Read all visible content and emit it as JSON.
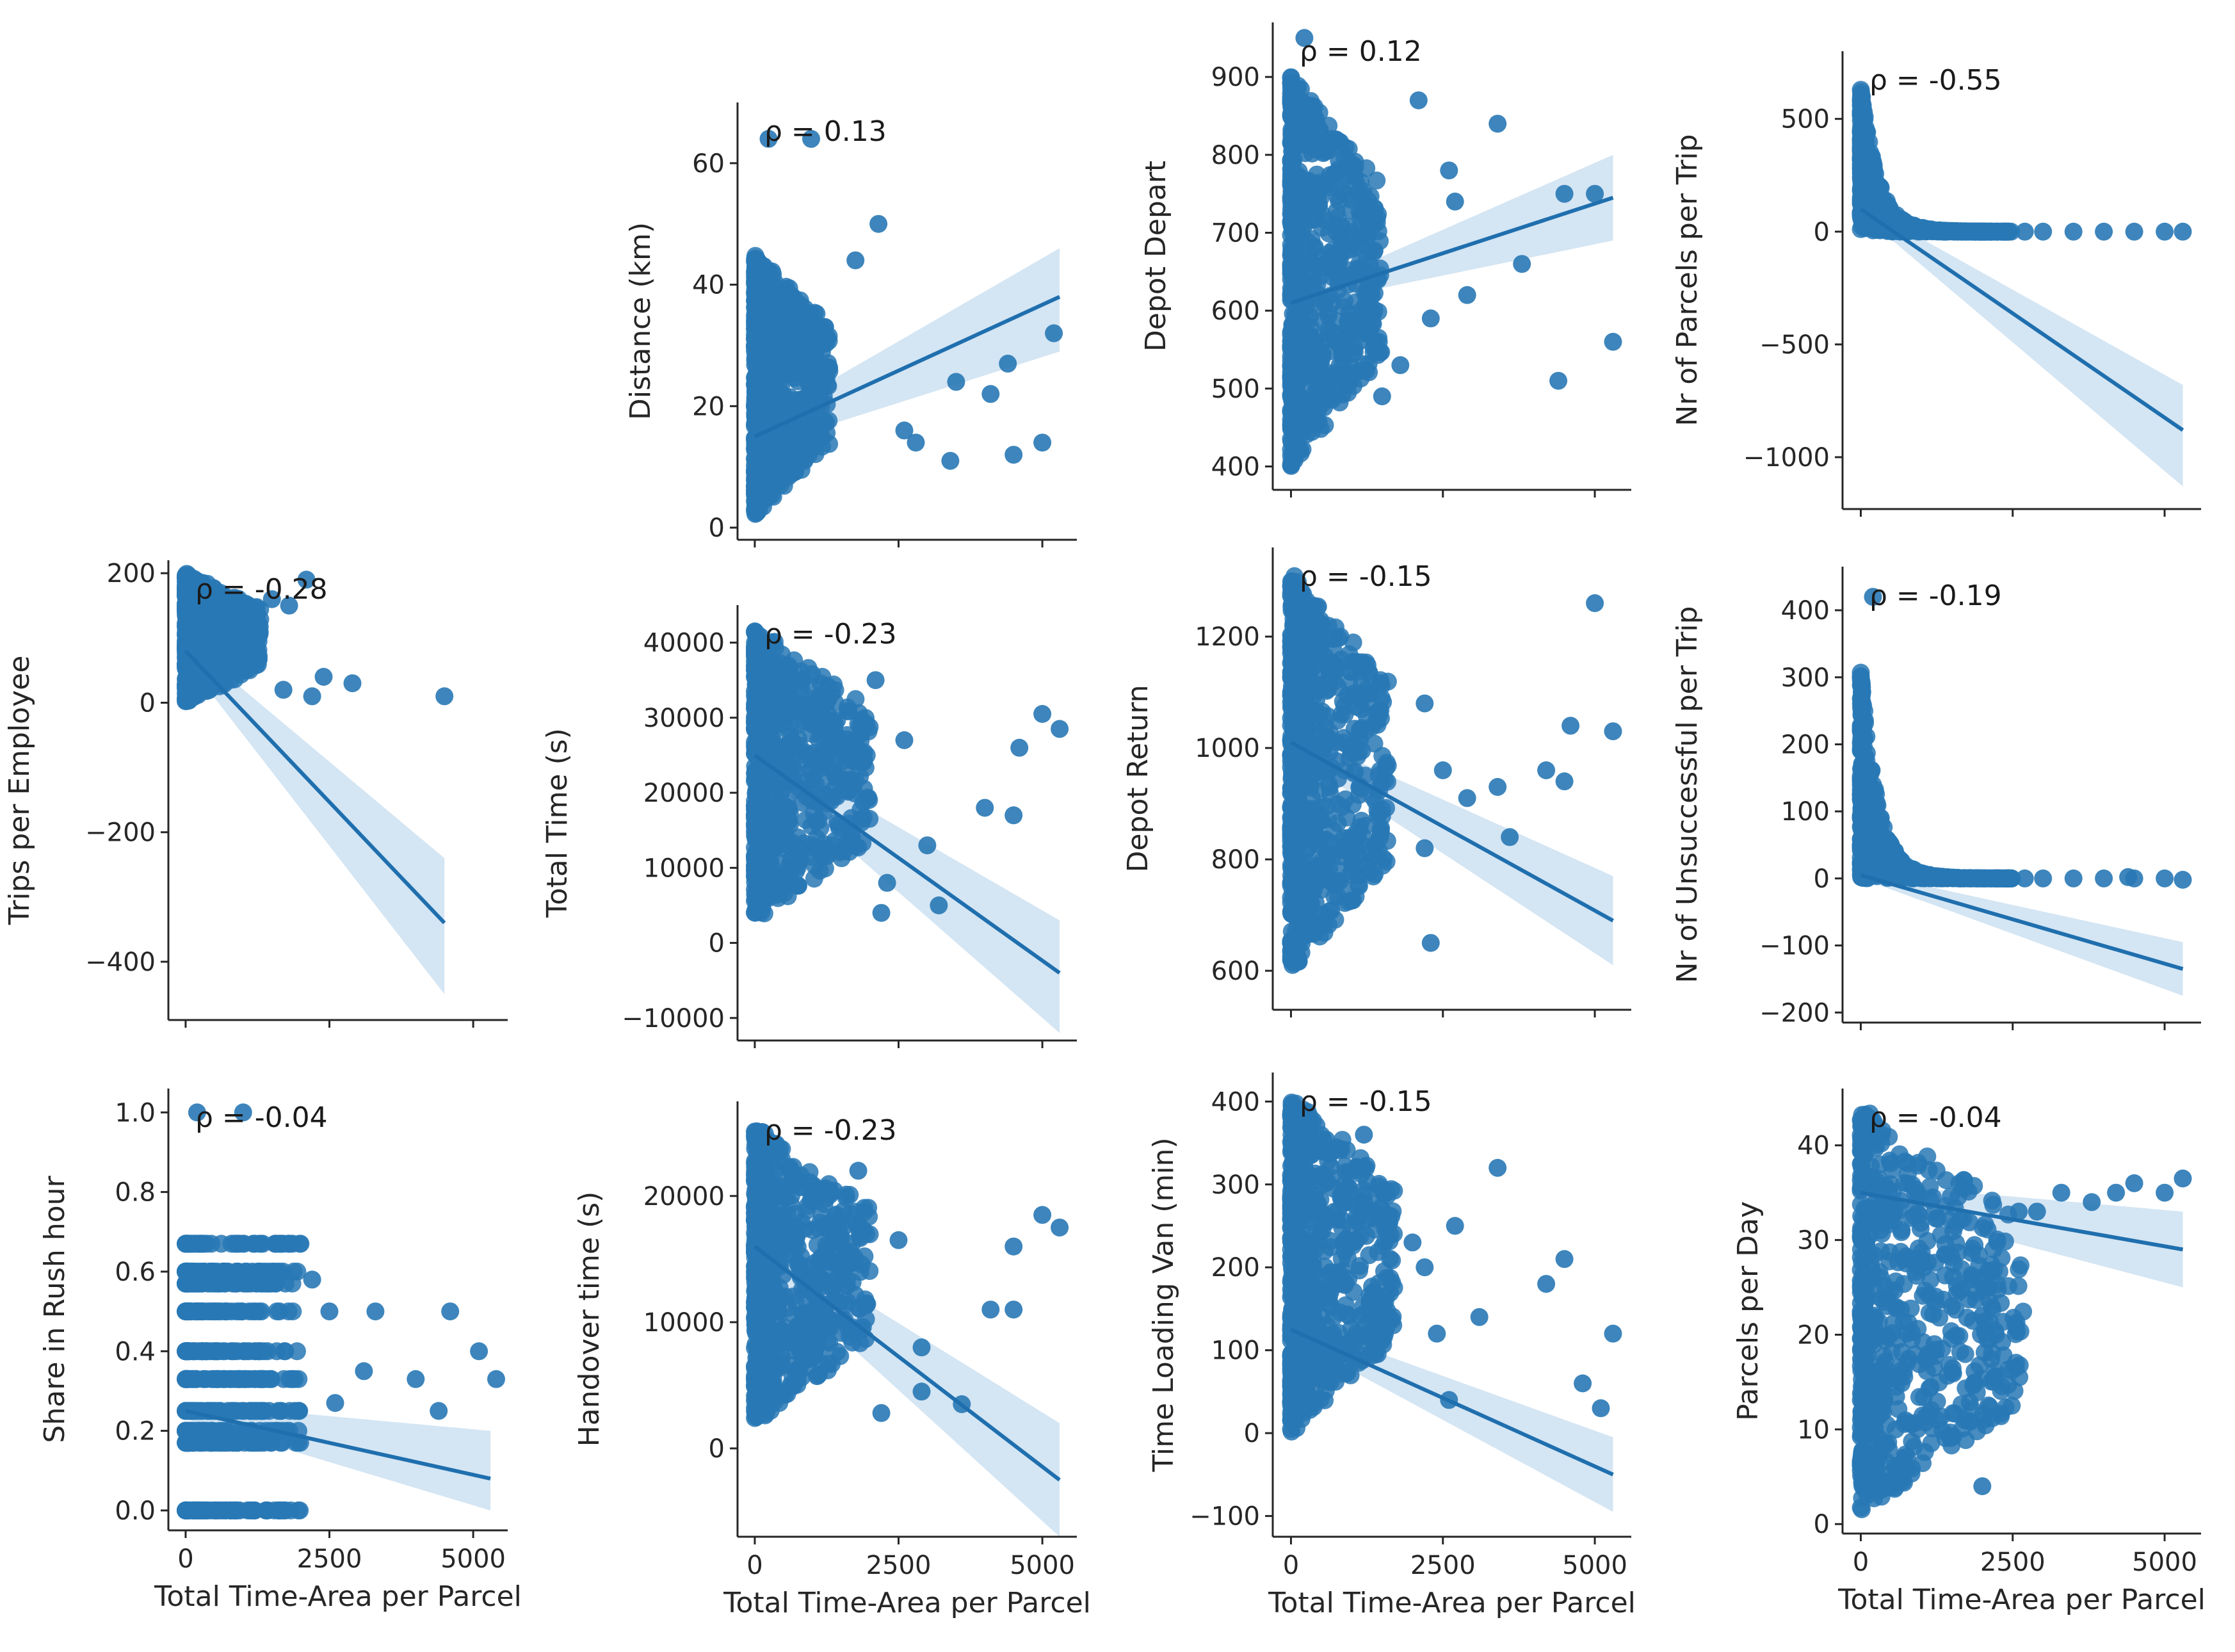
{
  "figure": {
    "description_type": "pairgrid-regression",
    "colors": {
      "points": "#2878b5",
      "line": "#1f6fae",
      "band": "#c6dcef",
      "axes": "#262626"
    }
  },
  "chart_data": [
    {
      "type": "scatter",
      "id": "distance",
      "ylabel": "Distance (km)",
      "xlabel": "",
      "rho": "ρ = 0.13",
      "xlim": [
        -300,
        5600
      ],
      "ylim": [
        -2,
        70
      ],
      "xticks": [],
      "yticks": [
        0,
        20,
        40,
        60
      ],
      "scatter_cluster": {
        "x": [
          0,
          1300
        ],
        "y": [
          2,
          45
        ]
      },
      "points": [
        [
          240,
          64
        ],
        [
          980,
          64
        ],
        [
          2150,
          50
        ],
        [
          1750,
          44
        ],
        [
          3500,
          24
        ],
        [
          4100,
          22
        ],
        [
          4400,
          27
        ],
        [
          3400,
          11
        ],
        [
          4500,
          12
        ],
        [
          5000,
          14
        ],
        [
          5200,
          32
        ],
        [
          2600,
          16
        ],
        [
          2800,
          14
        ]
      ],
      "regression": {
        "x": [
          0,
          5300
        ],
        "y": [
          15,
          38
        ]
      },
      "band": {
        "low": [
          13,
          29
        ],
        "high": [
          17,
          46
        ]
      }
    },
    {
      "type": "scatter",
      "id": "depot-depart",
      "ylabel": "Depot Depart",
      "xlabel": "",
      "rho": "ρ = 0.12",
      "xlim": [
        -300,
        5600
      ],
      "ylim": [
        370,
        970
      ],
      "xticks": [],
      "yticks": [
        400,
        500,
        600,
        700,
        800,
        900
      ],
      "scatter_cluster": {
        "x": [
          0,
          1500
        ],
        "y": [
          400,
          900
        ]
      },
      "points": [
        [
          220,
          950
        ],
        [
          2100,
          870
        ],
        [
          2600,
          780
        ],
        [
          2700,
          740
        ],
        [
          3400,
          840
        ],
        [
          4500,
          750
        ],
        [
          5000,
          750
        ],
        [
          4400,
          510
        ],
        [
          5300,
          560
        ],
        [
          3800,
          660
        ],
        [
          2300,
          590
        ],
        [
          1800,
          530
        ],
        [
          1500,
          490
        ],
        [
          2900,
          620
        ]
      ],
      "regression": {
        "x": [
          0,
          5300
        ],
        "y": [
          610,
          745
        ]
      },
      "band": {
        "low": [
          605,
          690
        ],
        "high": [
          618,
          800
        ]
      }
    },
    {
      "type": "scatter",
      "id": "parcels-per-trip",
      "ylabel": "Nr of Parcels per Trip",
      "xlabel": "",
      "rho": "ρ = -0.55",
      "xlim": [
        -300,
        5600
      ],
      "ylim": [
        -1230,
        800
      ],
      "xticks": [],
      "yticks": [
        -1000,
        -500,
        0,
        500
      ],
      "scatter_cluster": {
        "x": [
          0,
          2500
        ],
        "y": [
          0,
          650
        ],
        "shape": "hyperbola"
      },
      "points": [
        [
          3000,
          0
        ],
        [
          3500,
          0
        ],
        [
          4000,
          0
        ],
        [
          4500,
          0
        ],
        [
          5000,
          0
        ],
        [
          5300,
          0
        ],
        [
          2700,
          0
        ]
      ],
      "regression": {
        "x": [
          0,
          5300
        ],
        "y": [
          100,
          -880
        ]
      },
      "band": {
        "low": [
          80,
          -1130
        ],
        "high": [
          120,
          -680
        ]
      }
    },
    {
      "type": "scatter",
      "id": "trips-per-employee",
      "ylabel": "Trips per Employee",
      "xlabel": "",
      "rho": "ρ = -0.28",
      "xlim": [
        -300,
        5600
      ],
      "ylim": [
        -490,
        220
      ],
      "xticks": [],
      "yticks": [
        -400,
        -200,
        0,
        200
      ],
      "scatter_cluster": {
        "x": [
          0,
          1300
        ],
        "y": [
          0,
          200
        ]
      },
      "points": [
        [
          2100,
          190
        ],
        [
          1800,
          150
        ],
        [
          2400,
          40
        ],
        [
          2900,
          30
        ],
        [
          1700,
          20
        ],
        [
          2200,
          10
        ],
        [
          4500,
          10
        ],
        [
          1500,
          160
        ]
      ],
      "regression": {
        "x": [
          0,
          4500
        ],
        "y": [
          80,
          -340
        ]
      },
      "band": {
        "low": [
          65,
          -450
        ],
        "high": [
          95,
          -240
        ]
      }
    },
    {
      "type": "scatter",
      "id": "total-time",
      "ylabel": "Total Time (s)",
      "xlabel": "",
      "rho": "ρ = -0.23",
      "xlim": [
        -300,
        5600
      ],
      "ylim": [
        -13000,
        45000
      ],
      "xticks": [],
      "yticks": [
        -10000,
        0,
        10000,
        20000,
        30000,
        40000
      ],
      "scatter_cluster": {
        "x": [
          0,
          2000
        ],
        "y": [
          3000,
          42000
        ]
      },
      "points": [
        [
          2100,
          35000
        ],
        [
          2600,
          27000
        ],
        [
          4000,
          18000
        ],
        [
          4500,
          17000
        ],
        [
          4600,
          26000
        ],
        [
          5000,
          30500
        ],
        [
          5300,
          28500
        ],
        [
          3000,
          13000
        ],
        [
          3200,
          5000
        ],
        [
          2300,
          8000
        ],
        [
          2200,
          4000
        ]
      ],
      "regression": {
        "x": [
          0,
          5300
        ],
        "y": [
          25000,
          -4000
        ]
      },
      "band": {
        "low": [
          23500,
          -12000
        ],
        "high": [
          26500,
          3000
        ]
      }
    },
    {
      "type": "scatter",
      "id": "depot-return",
      "ylabel": "Depot Return",
      "xlabel": "",
      "rho": "ρ = -0.15",
      "xlim": [
        -300,
        5600
      ],
      "ylim": [
        530,
        1360
      ],
      "xticks": [],
      "yticks": [
        600,
        800,
        1000,
        1200
      ],
      "scatter_cluster": {
        "x": [
          0,
          1600
        ],
        "y": [
          600,
          1320
        ]
      },
      "points": [
        [
          2200,
          1080
        ],
        [
          2500,
          960
        ],
        [
          2900,
          910
        ],
        [
          3400,
          930
        ],
        [
          3600,
          840
        ],
        [
          4200,
          960
        ],
        [
          4500,
          940
        ],
        [
          4600,
          1040
        ],
        [
          5000,
          1260
        ],
        [
          5300,
          1030
        ],
        [
          2300,
          650
        ],
        [
          2200,
          820
        ]
      ],
      "regression": {
        "x": [
          0,
          5300
        ],
        "y": [
          1010,
          690
        ]
      },
      "band": {
        "low": [
          990,
          610
        ],
        "high": [
          1030,
          770
        ]
      }
    },
    {
      "type": "scatter",
      "id": "unsuccessful-per-trip",
      "ylabel": "Nr of Unsuccessful per Trip",
      "xlabel": "",
      "rho": "ρ = -0.19",
      "xlim": [
        -300,
        5600
      ],
      "ylim": [
        -215,
        465
      ],
      "xticks": [],
      "yticks": [
        -200,
        -100,
        0,
        100,
        200,
        300,
        400
      ],
      "scatter_cluster": {
        "x": [
          0,
          2500
        ],
        "y": [
          0,
          310
        ],
        "shape": "hyperbola"
      },
      "points": [
        [
          200,
          420
        ],
        [
          2700,
          0
        ],
        [
          3000,
          0
        ],
        [
          3500,
          0
        ],
        [
          4000,
          0
        ],
        [
          4500,
          0
        ],
        [
          5000,
          0
        ],
        [
          5300,
          -2
        ],
        [
          4400,
          2
        ]
      ],
      "regression": {
        "x": [
          0,
          5300
        ],
        "y": [
          5,
          -135
        ]
      },
      "band": {
        "low": [
          0,
          -175
        ],
        "high": [
          10,
          -95
        ]
      }
    },
    {
      "type": "scatter",
      "id": "share-rush-hour",
      "ylabel": "Share in Rush hour",
      "xlabel": "Total Time-Area per Parcel",
      "rho": "ρ = -0.04",
      "xlim": [
        -300,
        5600
      ],
      "ylim": [
        -0.05,
        1.06
      ],
      "xticks": [
        0,
        2500,
        5000
      ],
      "yticks": [
        0.0,
        0.2,
        0.4,
        0.6,
        0.8,
        1.0
      ],
      "scatter_cluster": {
        "x": [
          0,
          2000
        ],
        "y": [
          0.1,
          0.67
        ],
        "bands": [
          0.0,
          0.17,
          0.2,
          0.25,
          0.33,
          0.4,
          0.5,
          0.57,
          0.6,
          0.67
        ]
      },
      "points": [
        [
          200,
          1.0
        ],
        [
          1000,
          1.0
        ],
        [
          2200,
          0.58
        ],
        [
          2500,
          0.5
        ],
        [
          3300,
          0.5
        ],
        [
          4600,
          0.5
        ],
        [
          5100,
          0.4
        ],
        [
          5400,
          0.33
        ],
        [
          4000,
          0.33
        ],
        [
          4400,
          0.25
        ],
        [
          2600,
          0.27
        ],
        [
          3100,
          0.35
        ],
        [
          1900,
          0.25
        ]
      ],
      "regression": {
        "x": [
          0,
          5300
        ],
        "y": [
          0.25,
          0.08
        ]
      },
      "band": {
        "low": [
          0.23,
          0.0
        ],
        "high": [
          0.27,
          0.2
        ]
      }
    },
    {
      "type": "scatter",
      "id": "handover-time",
      "ylabel": "Handover time (s)",
      "xlabel": "Total Time-Area per Parcel",
      "rho": "ρ = -0.23",
      "xlim": [
        -300,
        5600
      ],
      "ylim": [
        -7000,
        27500
      ],
      "xticks": [
        0,
        2500,
        5000
      ],
      "yticks": [
        0,
        10000,
        20000
      ],
      "scatter_cluster": {
        "x": [
          0,
          2000
        ],
        "y": [
          2000,
          25500
        ]
      },
      "points": [
        [
          1800,
          22000
        ],
        [
          2500,
          16500
        ],
        [
          4100,
          11000
        ],
        [
          4500,
          11000
        ],
        [
          4500,
          16000
        ],
        [
          5000,
          18500
        ],
        [
          5300,
          17500
        ],
        [
          2900,
          8000
        ],
        [
          2900,
          4500
        ],
        [
          3600,
          3500
        ],
        [
          2200,
          2800
        ]
      ],
      "regression": {
        "x": [
          0,
          5300
        ],
        "y": [
          16000,
          -2500
        ]
      },
      "band": {
        "low": [
          15000,
          -7000
        ],
        "high": [
          17000,
          2000
        ]
      }
    },
    {
      "type": "scatter",
      "id": "time-loading-van",
      "ylabel": "Time Loading Van (min)",
      "xlabel": "Total Time-Area per Parcel",
      "rho": "ρ = -0.15",
      "xlim": [
        -300,
        5600
      ],
      "ylim": [
        -125,
        435
      ],
      "xticks": [
        0,
        2500,
        5000
      ],
      "yticks": [
        -100,
        0,
        100,
        200,
        300,
        400
      ],
      "scatter_cluster": {
        "x": [
          0,
          1700
        ],
        "y": [
          0,
          410
        ]
      },
      "points": [
        [
          1200,
          360
        ],
        [
          2000,
          230
        ],
        [
          2200,
          200
        ],
        [
          2700,
          250
        ],
        [
          3400,
          320
        ],
        [
          4500,
          210
        ],
        [
          4200,
          180
        ],
        [
          2400,
          120
        ],
        [
          3100,
          140
        ],
        [
          4800,
          60
        ],
        [
          5100,
          30
        ],
        [
          5300,
          120
        ],
        [
          2600,
          40
        ]
      ],
      "regression": {
        "x": [
          0,
          5300
        ],
        "y": [
          125,
          -50
        ]
      },
      "band": {
        "low": [
          115,
          -95
        ],
        "high": [
          135,
          -5
        ]
      }
    },
    {
      "type": "scatter",
      "id": "parcels-per-day",
      "ylabel": "Parcels per Day",
      "xlabel": "Total Time-Area per Parcel",
      "rho": "ρ = -0.04",
      "xlim": [
        -300,
        5600
      ],
      "ylim": [
        -1,
        46
      ],
      "xticks": [
        0,
        2500,
        5000
      ],
      "yticks": [
        0,
        10,
        20,
        30,
        40
      ],
      "scatter_cluster": {
        "x": [
          0,
          2700
        ],
        "y": [
          1,
          44
        ]
      },
      "points": [
        [
          2000,
          4
        ],
        [
          1500,
          23
        ],
        [
          2000,
          22
        ],
        [
          2100,
          25
        ],
        [
          2600,
          33
        ],
        [
          2900,
          33
        ],
        [
          3300,
          35
        ],
        [
          3800,
          34
        ],
        [
          4200,
          35
        ],
        [
          4500,
          36
        ],
        [
          5000,
          35
        ],
        [
          5300,
          36.5
        ]
      ],
      "regression": {
        "x": [
          0,
          5300
        ],
        "y": [
          35,
          29
        ]
      },
      "band": {
        "low": [
          34,
          25
        ],
        "high": [
          36,
          33
        ]
      }
    }
  ]
}
